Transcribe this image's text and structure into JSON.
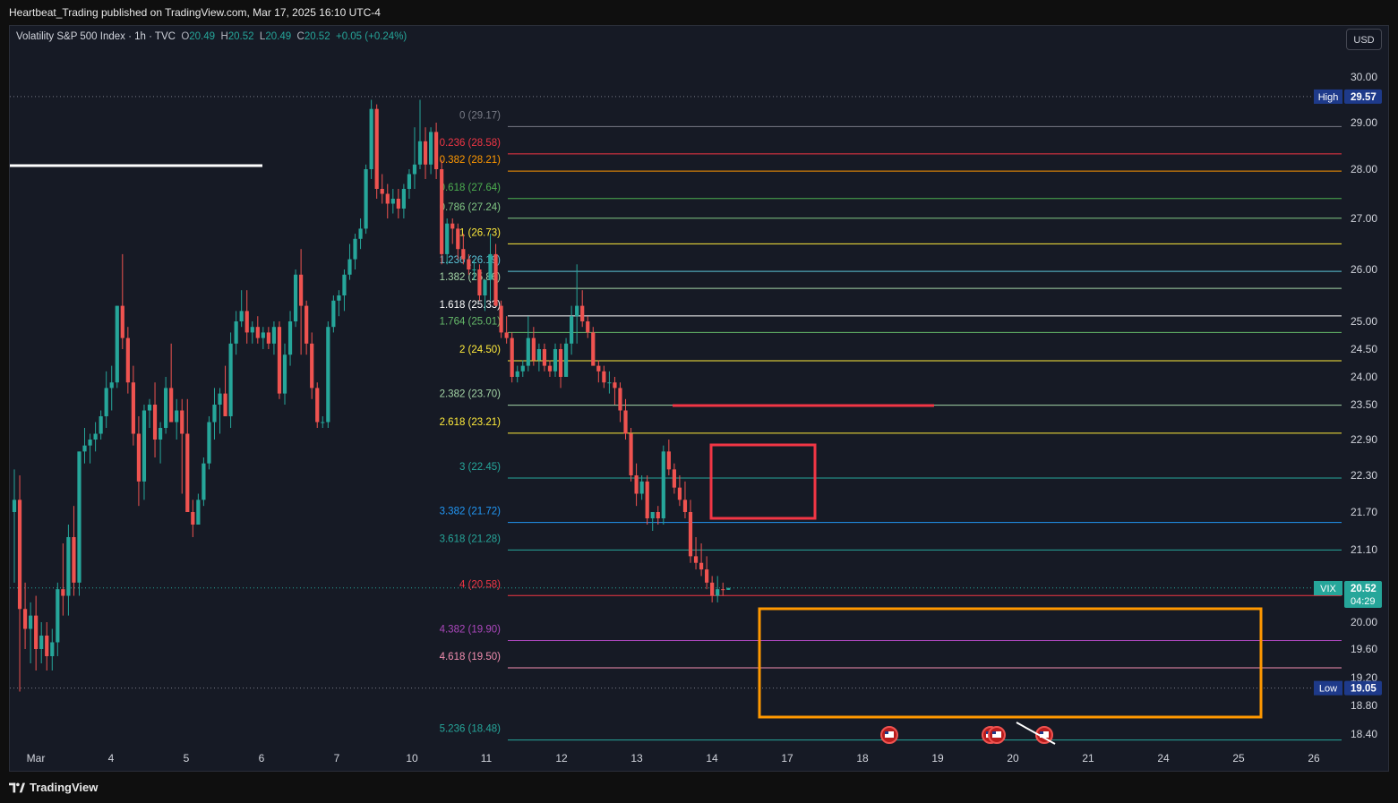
{
  "publisher": "Heartbeat_Trading published on TradingView.com, Mar 17, 2025 16:10 UTC-4",
  "brand": "TradingView",
  "currency_button": "USD",
  "legend": {
    "title": "Volatility S&P 500 Index · 1h · TVC",
    "o_label": "O",
    "o_value": "20.49",
    "h_label": "H",
    "h_value": "20.52",
    "l_label": "L",
    "l_value": "20.49",
    "c_label": "C",
    "c_value": "20.52",
    "change": "+0.05 (+0.24%)"
  },
  "colors": {
    "background": "#161a25",
    "up": "#26a69a",
    "down": "#ef5350",
    "highlight_red": "#f23645",
    "highlight_orange": "#ff9800"
  },
  "chart_data": {
    "type": "candlestick",
    "symbol": "VIX",
    "ylim": [
      18.25,
      30.35
    ],
    "x_tick_labels": [
      "Mar",
      "4",
      "5",
      "6",
      "7",
      "10",
      "11",
      "12",
      "13",
      "14",
      "17",
      "18",
      "19",
      "20",
      "21",
      "24",
      "25",
      "26"
    ],
    "y_tick_labels": [
      "30.00",
      "29.00",
      "28.00",
      "27.00",
      "26.00",
      "25.00",
      "24.50",
      "24.00",
      "23.50",
      "22.90",
      "22.30",
      "21.70",
      "21.10",
      "20.00",
      "19.60",
      "19.20",
      "18.80",
      "18.40"
    ],
    "price_tags": [
      {
        "label": "High",
        "value": "29.57"
      },
      {
        "label": "VIX",
        "value": "20.52",
        "countdown": "04:29"
      },
      {
        "label": "Low",
        "value": "19.05"
      }
    ],
    "fib_levels": [
      {
        "ratio": "0",
        "price": "29.17",
        "color": "#787b86"
      },
      {
        "ratio": "0.236",
        "price": "28.58",
        "color": "#f23645"
      },
      {
        "ratio": "0.382",
        "price": "28.21",
        "color": "#ff9800"
      },
      {
        "ratio": "0.618",
        "price": "27.64",
        "color": "#4caf50"
      },
      {
        "ratio": "0.786",
        "price": "27.24",
        "color": "#81c784"
      },
      {
        "ratio": "1",
        "price": "26.73",
        "color": "#ffeb3b"
      },
      {
        "ratio": "1.236",
        "price": "26.19",
        "color": "#5bc4d8"
      },
      {
        "ratio": "1.382",
        "price": "25.86",
        "color": "#a5d6a7"
      },
      {
        "ratio": "1.618",
        "price": "25.33",
        "color": "#ffffff"
      },
      {
        "ratio": "1.764",
        "price": "25.01",
        "color": "#66bb6a"
      },
      {
        "ratio": "2",
        "price": "24.50",
        "color": "#ffeb3b"
      },
      {
        "ratio": "2.382",
        "price": "23.70",
        "color": "#a5d6a7"
      },
      {
        "ratio": "2.618",
        "price": "23.21",
        "color": "#ffeb3b"
      },
      {
        "ratio": "3",
        "price": "22.45",
        "color": "#26a69a"
      },
      {
        "ratio": "3.382",
        "price": "21.72",
        "color": "#2196f3"
      },
      {
        "ratio": "3.618",
        "price": "21.28",
        "color": "#26a69a"
      },
      {
        "ratio": "4",
        "price": "20.58",
        "color": "#f23645"
      },
      {
        "ratio": "4.382",
        "price": "19.90",
        "color": "#ab47bc"
      },
      {
        "ratio": "4.618",
        "price": "19.50",
        "color": "#f48fb1"
      },
      {
        "ratio": "5.236",
        "price": "18.48",
        "color": "#26a69a"
      }
    ],
    "series": [
      {
        "values": [
          [
            21.7,
            22.4,
            20.6,
            21.9
          ],
          [
            21.9,
            22.3,
            19.0,
            20.2
          ],
          [
            20.2,
            20.6,
            19.6,
            19.9
          ],
          [
            19.9,
            20.3,
            19.4,
            20.1
          ],
          [
            20.1,
            20.4,
            19.3,
            19.6
          ],
          [
            19.6,
            20.0,
            19.4,
            19.8
          ],
          [
            19.8,
            20.0,
            19.3,
            19.5
          ],
          [
            19.5,
            19.9,
            19.3,
            19.7
          ],
          [
            19.7,
            20.6,
            19.5,
            20.5
          ],
          [
            20.5,
            21.2,
            20.1,
            20.4
          ],
          [
            20.4,
            21.5,
            20.1,
            21.3
          ],
          [
            21.3,
            21.8,
            20.4,
            20.6
          ],
          [
            20.6,
            22.7,
            20.4,
            22.7
          ],
          [
            22.7,
            23.1,
            22.5,
            22.8
          ],
          [
            22.8,
            23.0,
            22.5,
            22.9
          ],
          [
            22.9,
            23.2,
            22.7,
            23.0
          ],
          [
            23.0,
            23.4,
            22.9,
            23.3
          ],
          [
            23.3,
            24.1,
            23.1,
            23.8
          ],
          [
            23.8,
            24.2,
            23.4,
            23.9
          ],
          [
            23.9,
            25.3,
            23.8,
            25.3
          ],
          [
            25.3,
            26.3,
            24.5,
            24.7
          ],
          [
            24.7,
            24.9,
            23.7,
            23.9
          ],
          [
            23.9,
            24.2,
            22.8,
            23.0
          ],
          [
            23.0,
            23.3,
            21.8,
            22.2
          ],
          [
            22.2,
            23.5,
            21.9,
            23.4
          ],
          [
            23.4,
            23.6,
            23.1,
            23.5
          ],
          [
            23.5,
            23.9,
            22.6,
            22.9
          ],
          [
            22.9,
            23.2,
            22.5,
            23.1
          ],
          [
            23.1,
            24.0,
            23.0,
            23.8
          ],
          [
            23.8,
            24.6,
            23.7,
            23.2
          ],
          [
            23.2,
            23.6,
            22.9,
            23.4
          ],
          [
            23.4,
            23.6,
            22.0,
            23.0
          ],
          [
            23.0,
            23.6,
            21.9,
            21.7
          ],
          [
            21.7,
            21.9,
            21.3,
            21.5
          ],
          [
            21.5,
            22.0,
            21.5,
            21.9
          ],
          [
            21.9,
            22.6,
            21.8,
            22.5
          ],
          [
            22.5,
            23.3,
            22.4,
            23.2
          ],
          [
            23.2,
            23.8,
            22.9,
            23.5
          ],
          [
            23.5,
            23.8,
            23.0,
            23.7
          ],
          [
            23.7,
            24.2,
            23.3,
            23.3
          ],
          [
            23.3,
            24.8,
            23.1,
            24.6
          ],
          [
            24.6,
            25.2,
            24.4,
            25.0
          ],
          [
            25.0,
            25.6,
            24.9,
            25.2
          ],
          [
            25.2,
            25.6,
            24.6,
            24.8
          ],
          [
            24.8,
            25.0,
            24.6,
            24.9
          ],
          [
            24.9,
            25.1,
            24.6,
            24.7
          ],
          [
            24.7,
            24.9,
            24.5,
            24.8
          ],
          [
            24.8,
            24.9,
            24.5,
            24.6
          ],
          [
            24.6,
            25.0,
            24.4,
            24.9
          ],
          [
            24.9,
            25.0,
            23.6,
            23.7
          ],
          [
            23.7,
            24.6,
            23.5,
            24.4
          ],
          [
            24.4,
            25.2,
            24.2,
            25.0
          ],
          [
            25.0,
            26.0,
            24.9,
            25.9
          ],
          [
            25.9,
            26.4,
            24.4,
            25.3
          ],
          [
            25.3,
            25.4,
            24.4,
            24.6
          ],
          [
            24.6,
            24.8,
            23.6,
            23.8
          ],
          [
            23.8,
            23.9,
            23.1,
            23.2
          ],
          [
            23.2,
            23.3,
            23.1,
            23.2
          ],
          [
            23.2,
            25.0,
            23.1,
            24.9
          ],
          [
            24.9,
            25.5,
            24.8,
            25.4
          ],
          [
            25.4,
            25.6,
            25.1,
            25.5
          ],
          [
            25.5,
            26.0,
            25.2,
            25.9
          ],
          [
            25.9,
            26.5,
            25.8,
            26.2
          ],
          [
            26.2,
            26.7,
            26.0,
            26.6
          ],
          [
            26.6,
            27.0,
            26.4,
            26.8
          ],
          [
            26.8,
            28.1,
            26.7,
            28.0
          ],
          [
            28.0,
            29.5,
            27.8,
            29.3
          ],
          [
            29.3,
            29.4,
            27.4,
            27.6
          ],
          [
            27.6,
            27.9,
            27.3,
            27.5
          ],
          [
            27.5,
            27.7,
            27.0,
            27.3
          ],
          [
            27.3,
            27.6,
            27.1,
            27.4
          ],
          [
            27.4,
            27.6,
            27.0,
            27.2
          ],
          [
            27.2,
            27.7,
            27.0,
            27.6
          ],
          [
            27.6,
            28.0,
            27.4,
            27.9
          ],
          [
            27.9,
            28.9,
            27.6,
            28.1
          ],
          [
            28.1,
            29.5,
            28.0,
            28.6
          ],
          [
            28.6,
            28.9,
            27.8,
            28.1
          ],
          [
            28.1,
            28.9,
            27.9,
            28.8
          ],
          [
            28.8,
            29.0,
            27.8,
            28.0
          ],
          [
            28.0,
            28.2,
            26.1,
            26.3
          ],
          [
            26.3,
            27.0,
            26.1,
            26.9
          ],
          [
            26.9,
            27.0,
            26.5,
            26.8
          ],
          [
            26.8,
            26.9,
            26.2,
            26.4
          ],
          [
            26.4,
            26.7,
            26.1,
            26.2
          ],
          [
            26.2,
            26.3,
            25.9,
            26.0
          ],
          [
            26.0,
            26.2,
            25.8,
            26.0
          ],
          [
            26.0,
            26.1,
            25.4,
            25.5
          ],
          [
            25.5,
            25.6,
            25.2,
            25.8
          ],
          [
            25.8,
            26.7,
            25.4,
            26.3
          ],
          [
            26.3,
            26.5,
            25.3,
            25.3
          ],
          [
            25.3,
            25.4,
            24.7,
            24.8
          ],
          [
            24.8,
            25.1,
            24.6,
            24.7
          ],
          [
            24.7,
            24.8,
            23.9,
            24.0
          ],
          [
            24.0,
            24.2,
            23.9,
            24.1
          ],
          [
            24.1,
            24.3,
            24.0,
            24.2
          ],
          [
            24.2,
            25.1,
            24.1,
            24.7
          ],
          [
            24.7,
            24.9,
            24.2,
            24.3
          ],
          [
            24.3,
            24.6,
            24.1,
            24.5
          ],
          [
            24.5,
            24.6,
            24.1,
            24.2
          ],
          [
            24.2,
            24.3,
            24.0,
            24.1
          ],
          [
            24.1,
            24.6,
            24.0,
            24.5
          ],
          [
            24.5,
            24.6,
            23.8,
            24.0
          ],
          [
            24.0,
            24.7,
            24.0,
            24.6
          ],
          [
            24.6,
            25.3,
            24.4,
            25.1
          ],
          [
            25.1,
            26.1,
            24.6,
            25.3
          ],
          [
            25.3,
            25.6,
            24.9,
            25.0
          ],
          [
            25.0,
            25.1,
            24.7,
            24.8
          ],
          [
            24.8,
            24.9,
            24.3,
            24.2
          ],
          [
            24.2,
            24.3,
            23.9,
            24.1
          ],
          [
            24.1,
            24.2,
            23.8,
            23.9
          ],
          [
            23.9,
            24.1,
            23.7,
            23.9
          ],
          [
            23.9,
            24.0,
            23.5,
            23.8
          ],
          [
            23.8,
            23.9,
            23.2,
            23.4
          ],
          [
            23.4,
            23.6,
            22.9,
            23.0
          ],
          [
            23.0,
            23.1,
            22.2,
            22.3
          ],
          [
            22.3,
            22.5,
            21.8,
            22.0
          ],
          [
            22.0,
            22.3,
            21.9,
            22.2
          ],
          [
            22.2,
            22.3,
            21.5,
            21.6
          ],
          [
            21.6,
            21.7,
            21.4,
            21.7
          ],
          [
            21.7,
            21.8,
            21.5,
            21.6
          ],
          [
            21.6,
            22.8,
            21.5,
            22.7
          ],
          [
            22.7,
            22.9,
            22.3,
            22.4
          ],
          [
            22.4,
            22.5,
            22.0,
            22.1
          ],
          [
            22.1,
            22.3,
            21.8,
            21.9
          ],
          [
            21.9,
            22.2,
            21.6,
            21.7
          ],
          [
            21.7,
            21.9,
            20.9,
            21.0
          ],
          [
            21.0,
            21.3,
            20.8,
            20.9
          ],
          [
            20.9,
            21.2,
            20.7,
            20.8
          ],
          [
            20.8,
            21.0,
            20.5,
            20.6
          ],
          [
            20.6,
            20.7,
            20.3,
            20.4
          ],
          [
            20.4,
            20.7,
            20.3,
            20.5
          ],
          [
            20.5,
            20.6,
            20.4,
            20.49
          ],
          [
            20.49,
            20.52,
            20.49,
            20.52
          ]
        ]
      }
    ]
  }
}
